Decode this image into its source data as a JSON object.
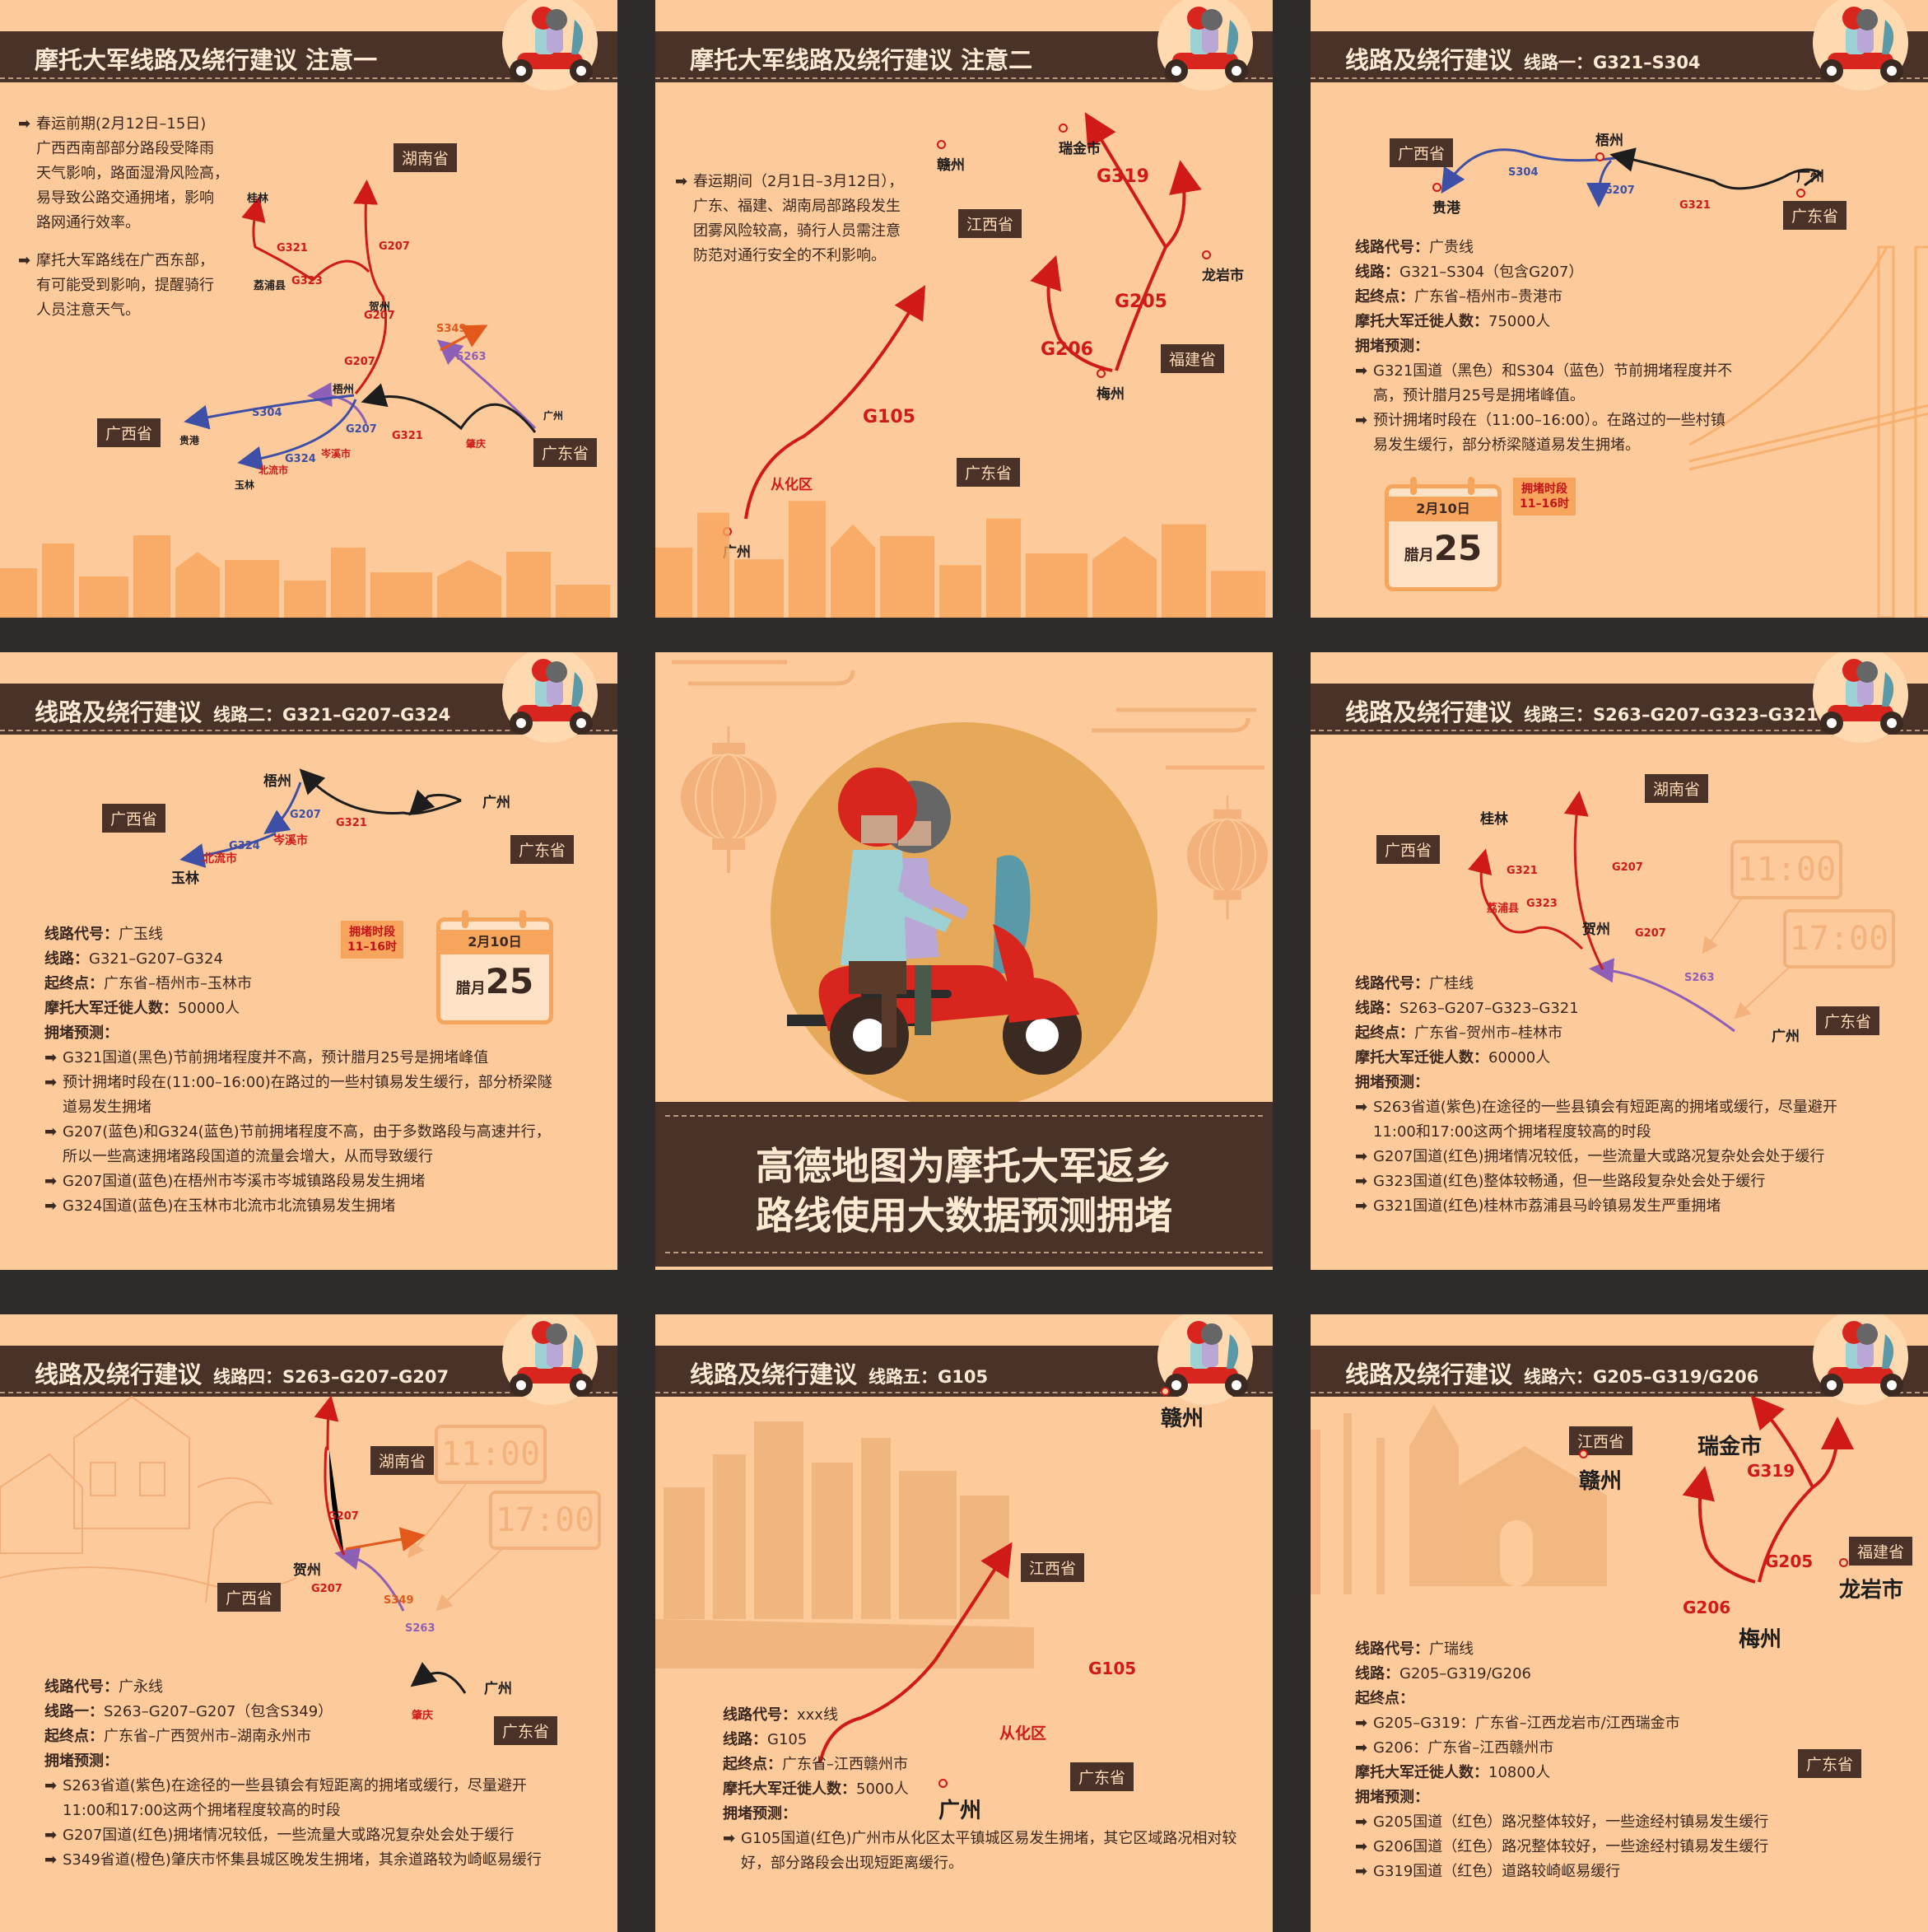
{
  "icons": {
    "scooter": "scooter-riders-icon",
    "arrow": "arrow-right-icon",
    "calendar": "calendar-icon",
    "clock": "digital-clock-icon",
    "lantern": "lantern-icon",
    "city_marker": "city-dot-icon"
  },
  "colors": {
    "background": "#fdcb9b",
    "header": "#4b3228",
    "red_route": "#d01a1a",
    "blue_route": "#3d4fa6",
    "black_route": "#1d1d1d",
    "purple_route": "#8e5fb6",
    "orange_route": "#e2591b",
    "accent": "#f7a55c",
    "gap": "#2e2c2b"
  },
  "p1": {
    "title": "摩托大军线路及绕行建议  注意一",
    "text": {
      "l1": "春运前期(2月12日–15日)",
      "l2": "广西西南部部分路段受降雨",
      "l3": "天气影响，路面湿滑风险高，",
      "l4": "易导致公路交通拥堵，影响",
      "l5": "路网通行效率。",
      "l6": "摩托大军路线在广西东部，",
      "l7": "有可能受到影响，提醒骑行",
      "l8": "人员注意天气。"
    },
    "tags": {
      "hunan": "湖南省",
      "guangxi": "广西省",
      "guangdong": "广东省"
    },
    "cities": {
      "guilin": "桂林",
      "lipu": "荔浦县",
      "hezhou": "贺州",
      "wuzhou": "梧州",
      "guigang": "贵港",
      "yulin": "玉林",
      "beiliu": "北流市",
      "cenxi": "岑溪市",
      "zhaoqing": "肇庆",
      "guangzhou": "广州"
    },
    "routes": {
      "g321a": "G321",
      "g323": "G323",
      "g207a": "G207",
      "g207b": "G207",
      "g207c": "G207",
      "g207d": "G207",
      "s349": "S349",
      "s263": "S263",
      "s304": "S304",
      "g324": "G324",
      "g321b": "G321"
    }
  },
  "p2": {
    "title": "摩托大军线路及绕行建议  注意二",
    "text": {
      "l1": "春运期间（2月1日–3月12日），",
      "l2": "广东、福建、湖南局部路段发生",
      "l3": "团雾风险较高，骑行人员需注意",
      "l4": "防范对通行安全的不利影响。"
    },
    "tags": {
      "jiangxi": "江西省",
      "guangdong": "广东省",
      "fujian": "福建省"
    },
    "cities": {
      "ganzhou": "赣州",
      "ruijin": "瑞金市",
      "longyan": "龙岩市",
      "meizhou": "梅州",
      "conghua": "从化区",
      "guangzhou": "广州"
    },
    "routes": {
      "g319": "G319",
      "g205": "G205",
      "g206": "G206",
      "g105": "G105"
    }
  },
  "p3": {
    "title": "线路及绕行建议",
    "sub": "线路一：G321–S304",
    "tags": {
      "guangxi": "广西省",
      "guangdong": "广东省"
    },
    "cities": {
      "wuzhou": "梧州",
      "guigang": "贵港",
      "guangzhou": "广州"
    },
    "routes": {
      "s304": "S304",
      "g207": "G207",
      "g321": "G321"
    },
    "info": {
      "code_k": "线路代号：",
      "code_v": "广贵线",
      "route_k": "线路：",
      "route_v": "G321–S304（包含G207）",
      "ends_k": "起终点：",
      "ends_v": "广东省–梧州市–贵港市",
      "num_k": "摩托大军迁徙人数：",
      "num_v": "75000人",
      "fc_k": "拥堵预测：",
      "f1": "G321国道（黑色）和S304（蓝色）节前拥堵程度并不",
      "f1b": "高，预计腊月25号是拥堵峰值。",
      "f2": "预计拥堵时段在（11:00–16:00）。在路过的一些村镇",
      "f2b": "易发生缓行，部分桥梁隧道易发生拥堵。"
    },
    "cal": {
      "date": "2月10日",
      "lunar": "腊月",
      "day": "25"
    },
    "jam": {
      "l1": "拥堵时段",
      "l2": "11–16时"
    }
  },
  "p4": {
    "title": "线路及绕行建议",
    "sub": "线路二：G321–G207–G324",
    "tags": {
      "guangxi": "广西省",
      "guangdong": "广东省"
    },
    "cities": {
      "wuzhou": "梧州",
      "guangzhou": "广州",
      "cenxi": "岑溪市",
      "beiliu": "北流市",
      "yulin": "玉林"
    },
    "routes": {
      "g207": "G207",
      "g321": "G321",
      "g324": "G324"
    },
    "info": {
      "code_k": "线路代号：",
      "code_v": "广玉线",
      "route_k": "线路：",
      "route_v": "G321–G207–G324",
      "ends_k": "起终点：",
      "ends_v": "广东省–梧州市–玉林市",
      "num_k": "摩托大军迁徙人数：",
      "num_v": "50000人",
      "fc_k": "拥堵预测：",
      "f1": "G321国道(黑色)节前拥堵程度并不高，预计腊月25号是拥堵峰值",
      "f2": "预计拥堵时段在(11:00–16:00)在路过的一些村镇易发生缓行，部分桥梁隧",
      "f2b": "道易发生拥堵",
      "f3": "G207(蓝色)和G324(蓝色)节前拥堵程度不高，由于多数路段与高速并行，",
      "f3b": "所以一些高速拥堵路段国道的流量会增大，从而导致缓行",
      "f4": "G207国道(蓝色)在梧州市岑溪市岑城镇路段易发生拥堵",
      "f5": "G324国道(蓝色)在玉林市北流市北流镇易发生拥堵"
    },
    "cal": {
      "date": "2月10日",
      "lunar": "腊月",
      "day": "25"
    },
    "jam": {
      "l1": "拥堵时段",
      "l2": "11–16时"
    }
  },
  "p5": {
    "line1": "高德地图为摩托大军返乡",
    "line2": "路线使用大数据预测拥堵"
  },
  "p6": {
    "title": "线路及绕行建议",
    "sub": "线路三：S263–G207–G323–G321",
    "tags": {
      "hunan": "湖南省",
      "guangxi": "广西省",
      "guangdong": "广东省"
    },
    "cities": {
      "guilin": "桂林",
      "lipu": "荔浦县",
      "hezhou": "贺州",
      "guangzhou": "广州"
    },
    "routes": {
      "g321": "G321",
      "g323": "G323",
      "g207a": "G207",
      "g207b": "G207",
      "s263": "S263"
    },
    "clocks": {
      "c1": "11:00",
      "c2": "17:00"
    },
    "info": {
      "code_k": "线路代号：",
      "code_v": "广桂线",
      "route_k": "线路：",
      "route_v": "S263–G207–G323–G321",
      "ends_k": "起终点：",
      "ends_v": "广东省–贺州市–桂林市",
      "num_k": "摩托大军迁徙人数：",
      "num_v": "60000人",
      "fc_k": "拥堵预测：",
      "f1": "S263省道(紫色)在途径的一些县镇会有短距离的拥堵或缓行，尽量避开",
      "f1b": "11:00和17:00这两个拥堵程度较高的时段",
      "f2": "G207国道(红色)拥堵情况较低，一些流量大或路况复杂处会处于缓行",
      "f3": "G323国道(红色)整体较畅通，但一些路段复杂处会处于缓行",
      "f4": "G321国道(红色)桂林市荔浦县马岭镇易发生严重拥堵"
    }
  },
  "p7": {
    "title": "线路及绕行建议",
    "sub": "线路四：S263–G207–G207",
    "tags": {
      "hunan": "湖南省",
      "guangxi": "广西省",
      "guangdong": "广东省"
    },
    "cities": {
      "hezhou": "贺州",
      "guangzhou": "广州",
      "zhaoqing": "肇庆"
    },
    "routes": {
      "g207a": "G207",
      "g207b": "G207",
      "s349": "S349",
      "s263": "S263"
    },
    "clocks": {
      "c1": "11:00",
      "c2": "17:00"
    },
    "info": {
      "code_k": "线路代号：",
      "code_v": "广永线",
      "route_k": "线路一：",
      "route_v": "S263–G207–G207（包含S349）",
      "ends_k": "起终点：",
      "ends_v": "广东省–广西贺州市–湖南永州市",
      "fc_k": "拥堵预测：",
      "f1": "S263省道(紫色)在途径的一些县镇会有短距离的拥堵或缓行，尽量避开",
      "f1b": "11:00和17:00这两个拥堵程度较高的时段",
      "f2": "G207国道(红色)拥堵情况较低，一些流量大或路况复杂处会处于缓行",
      "f3": "S349省道(橙色)肇庆市怀集县城区晚发生拥堵，其余道路较为崎岖易缓行"
    }
  },
  "p8": {
    "title": "线路及绕行建议",
    "sub": "线路五：G105",
    "tags": {
      "jiangxi": "江西省",
      "guangdong": "广东省"
    },
    "cities": {
      "ganzhou": "赣州",
      "conghua": "从化区",
      "guangzhou": "广州"
    },
    "routes": {
      "g105": "G105"
    },
    "info": {
      "code_k": "线路代号：",
      "code_v": "xxx线",
      "route_k": "线路：",
      "route_v": "G105",
      "ends_k": "起终点：",
      "ends_v": "广东省–江西赣州市",
      "num_k": "摩托大军迁徙人数：",
      "num_v": "5000人",
      "fc_k": "拥堵预测：",
      "f1": "G105国道(红色)广州市从化区太平镇城区易发生拥堵，其它区域路况相对较",
      "f1b": "好，部分路段会出现短距离缓行。"
    }
  },
  "p9": {
    "title": "线路及绕行建议",
    "sub": "线路六：G205–G319/G206",
    "tags": {
      "jiangxi": "江西省",
      "fujian": "福建省",
      "guangdong": "广东省"
    },
    "cities": {
      "ganzhou": "赣州",
      "ruijin": "瑞金市",
      "longyan": "龙岩市",
      "meizhou": "梅州"
    },
    "routes": {
      "g319": "G319",
      "g205": "G205",
      "g206": "G206"
    },
    "info": {
      "code_k": "线路代号：",
      "code_v": "广瑞线",
      "route_k": "线路：",
      "route_v": "G205–G319/G206",
      "ends_k": "起终点：",
      "e1": "G205–G319：广东省–江西龙岩市/江西瑞金市",
      "e2": "G206：广东省–江西赣州市",
      "num_k": "摩托大军迁徙人数：",
      "num_v": "10800人",
      "fc_k": "拥堵预测：",
      "f1": "G205国道（红色）路况整体较好，一些途经村镇易发生缓行",
      "f2": "G206国道（红色）路况整体较好，一些途经村镇易发生缓行",
      "f3": "G319国道（红色）道路较崎岖易缓行"
    }
  }
}
